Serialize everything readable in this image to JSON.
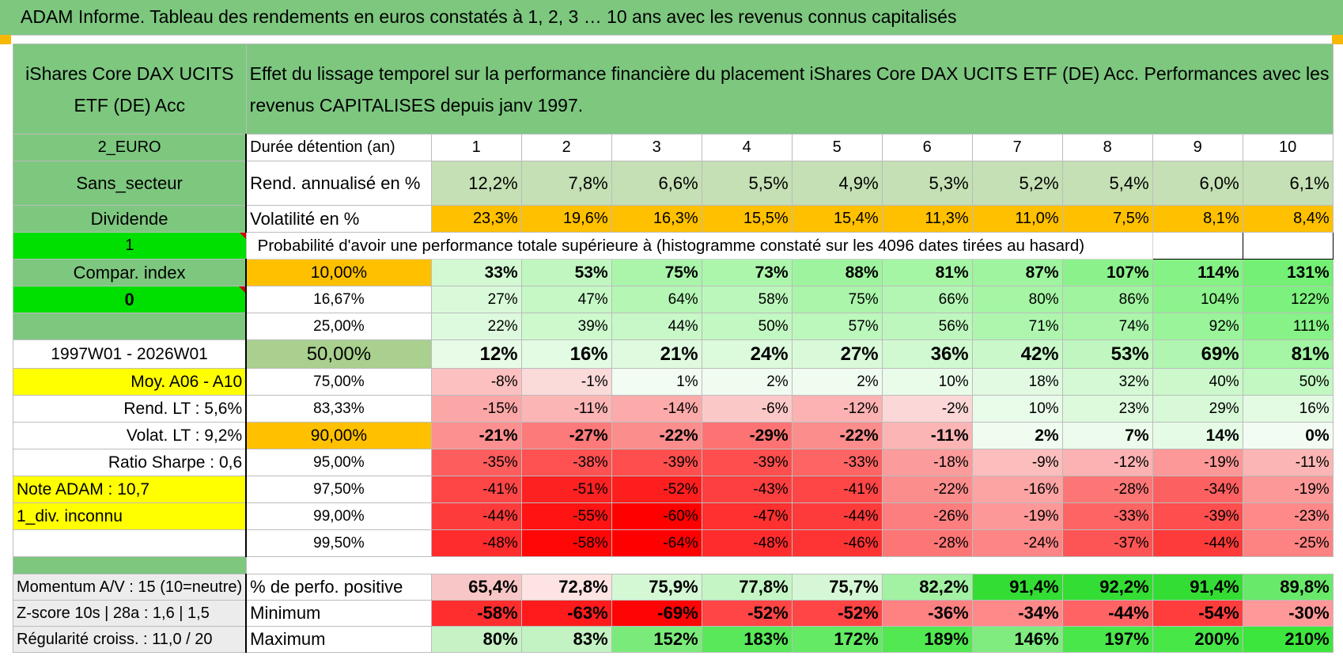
{
  "title": "ADAM Informe. Tableau des rendements en euros constatés à 1, 2, 3 … 10 ans avec les revenus connus capitalisés",
  "fund_name": "iShares Core DAX UCITS ETF (DE) Acc",
  "description": "Effet du lissage temporel sur la performance financière du placement iShares Core DAX UCITS ETF (DE) Acc. Performances avec les revenus CAPITALISES depuis janv 1997.",
  "years_label": "Durée détention (an)",
  "years": [
    "1",
    "2",
    "3",
    "4",
    "5",
    "6",
    "7",
    "8",
    "9",
    "10"
  ],
  "left_labels": {
    "currency": "2_EURO",
    "sector": "Sans_secteur",
    "dividend": "Dividende",
    "flag1": "1",
    "compar": "Compar. index",
    "flag0": "0",
    "period": "1997W01 - 2026W01",
    "moy": "Moy. A06 - A10",
    "rend_lt": "Rend. LT :   5,6%",
    "volat_lt": "Volat. LT :   9,2%",
    "sharpe": "Ratio Sharpe :    0,6",
    "note": "Note ADAM : 10,7",
    "div": "1_div. inconnu",
    "momentum": "Momentum A/V : 15 (10=neutre)",
    "zscore": "Z-score 10s | 28a : 1,6 | 1,5",
    "regularite": "Régularité croiss. : 11,0 / 20"
  },
  "rend": {
    "label": "Rend. annualisé en %",
    "values": [
      "12,2%",
      "7,8%",
      "6,6%",
      "5,5%",
      "4,9%",
      "5,3%",
      "5,2%",
      "5,4%",
      "6,0%",
      "6,1%"
    ]
  },
  "vol": {
    "label": "Volatilité en %",
    "values": [
      "23,3%",
      "19,6%",
      "16,3%",
      "15,5%",
      "15,4%",
      "11,3%",
      "11,0%",
      "7,5%",
      "8,1%",
      "8,4%"
    ]
  },
  "prob_title": "Probabilité d'avoir une performance totale supérieure à (histogramme constaté sur les 4096 dates tirées au hasard)",
  "prob_rows": [
    {
      "label": "10,00%",
      "values": [
        33,
        53,
        75,
        73,
        88,
        81,
        87,
        107,
        114,
        131
      ]
    },
    {
      "label": "16,67%",
      "values": [
        27,
        47,
        64,
        58,
        75,
        66,
        80,
        86,
        104,
        122
      ]
    },
    {
      "label": "25,00%",
      "values": [
        22,
        39,
        44,
        50,
        57,
        56,
        71,
        74,
        92,
        111
      ]
    },
    {
      "label": "50,00%",
      "values": [
        12,
        16,
        21,
        24,
        27,
        36,
        42,
        53,
        69,
        81
      ]
    },
    {
      "label": "75,00%",
      "values": [
        -8,
        -1,
        1,
        2,
        2,
        10,
        18,
        32,
        40,
        50
      ]
    },
    {
      "label": "83,33%",
      "values": [
        -15,
        -11,
        -14,
        -6,
        -12,
        -2,
        10,
        23,
        29,
        16
      ]
    },
    {
      "label": "90,00%",
      "values": [
        -21,
        -27,
        -22,
        -29,
        -22,
        -11,
        2,
        7,
        14,
        0
      ]
    },
    {
      "label": "95,00%",
      "values": [
        -35,
        -38,
        -39,
        -39,
        -33,
        -18,
        -9,
        -12,
        -19,
        -11
      ]
    },
    {
      "label": "97,50%",
      "values": [
        -41,
        -51,
        -52,
        -43,
        -41,
        -22,
        -16,
        -28,
        -34,
        -19
      ]
    },
    {
      "label": "99,00%",
      "values": [
        -44,
        -55,
        -60,
        -47,
        -44,
        -26,
        -19,
        -33,
        -39,
        -23
      ]
    },
    {
      "label": "99,50%",
      "values": [
        -48,
        -58,
        -64,
        -48,
        -46,
        -28,
        -24,
        -37,
        -44,
        -25
      ]
    }
  ],
  "summary_rows": [
    {
      "label": "% de perfo. positive",
      "values": [
        "65,4%",
        "72,8%",
        "75,9%",
        "77,8%",
        "75,7%",
        "82,2%",
        "91,4%",
        "92,2%",
        "91,4%",
        "89,8%"
      ],
      "levels": [
        65.4,
        72.8,
        75.9,
        77.8,
        75.7,
        82.2,
        91.4,
        92.2,
        91.4,
        89.8
      ]
    },
    {
      "label": "Minimum",
      "values": [
        "-58%",
        "-63%",
        "-69%",
        "-52%",
        "-52%",
        "-36%",
        "-34%",
        "-44%",
        "-54%",
        "-30%"
      ],
      "levels": [
        -58,
        -63,
        -69,
        -52,
        -52,
        -36,
        -34,
        -44,
        -54,
        -30
      ]
    },
    {
      "label": "Maximum",
      "values": [
        "80%",
        "83%",
        "152%",
        "183%",
        "172%",
        "189%",
        "146%",
        "197%",
        "200%",
        "210%"
      ],
      "levels": [
        80,
        83,
        152,
        183,
        172,
        189,
        146,
        197,
        200,
        210
      ]
    }
  ],
  "colors": {
    "header_green": "#7dc77f",
    "bright_green": "#00e000",
    "yellow": "#ffff00",
    "orange": "#ffc000",
    "red_text": "#e00000"
  }
}
